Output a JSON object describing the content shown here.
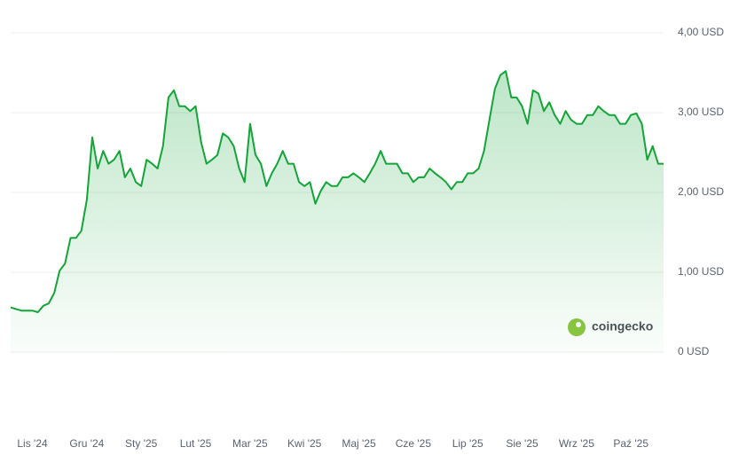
{
  "chart_data": {
    "type": "line",
    "watermark": "coingecko",
    "categories": [
      null,
      null,
      null,
      null,
      "Lis '24",
      null,
      null,
      null,
      null,
      null,
      null,
      null,
      null,
      null,
      "Gru '24",
      null,
      null,
      null,
      null,
      null,
      null,
      null,
      null,
      null,
      "Sty '25",
      null,
      null,
      null,
      null,
      null,
      null,
      null,
      null,
      null,
      "Lut '25",
      null,
      null,
      null,
      null,
      null,
      null,
      null,
      null,
      null,
      "Mar '25",
      null,
      null,
      null,
      null,
      null,
      null,
      null,
      null,
      null,
      "Kwi '25",
      null,
      null,
      null,
      null,
      null,
      null,
      null,
      null,
      null,
      "Maj '25",
      null,
      null,
      null,
      null,
      null,
      null,
      null,
      null,
      null,
      "Cze '25",
      null,
      null,
      null,
      null,
      null,
      null,
      null,
      null,
      null,
      "Lip '25",
      null,
      null,
      null,
      null,
      null,
      null,
      null,
      null,
      null,
      "Sie '25",
      null,
      null,
      null,
      null,
      null,
      null,
      null,
      null,
      null,
      "Wrz '25",
      null,
      null,
      null,
      null,
      null,
      null,
      null,
      null,
      null,
      "Paź '25",
      null,
      null,
      null,
      null,
      null,
      null
    ],
    "values": [
      0.56,
      0.54,
      0.52,
      0.52,
      0.52,
      0.5,
      0.58,
      0.61,
      0.74,
      1.02,
      1.11,
      1.43,
      1.43,
      1.52,
      1.91,
      2.69,
      2.3,
      2.52,
      2.36,
      2.41,
      2.52,
      2.19,
      2.3,
      2.13,
      2.08,
      2.41,
      2.36,
      2.3,
      2.58,
      3.19,
      3.28,
      3.08,
      3.08,
      3.02,
      3.08,
      2.63,
      2.36,
      2.41,
      2.47,
      2.74,
      2.69,
      2.58,
      2.3,
      2.13,
      2.86,
      2.47,
      2.36,
      2.08,
      2.24,
      2.36,
      2.52,
      2.36,
      2.36,
      2.13,
      2.08,
      2.13,
      1.86,
      2.02,
      2.13,
      2.08,
      2.08,
      2.19,
      2.19,
      2.24,
      2.19,
      2.13,
      2.24,
      2.36,
      2.52,
      2.36,
      2.36,
      2.36,
      2.24,
      2.24,
      2.13,
      2.19,
      2.19,
      2.3,
      2.24,
      2.19,
      2.13,
      2.04,
      2.13,
      2.13,
      2.24,
      2.24,
      2.3,
      2.52,
      2.91,
      3.3,
      3.47,
      3.52,
      3.19,
      3.19,
      3.08,
      2.86,
      3.28,
      3.24,
      3.02,
      3.13,
      2.97,
      2.86,
      3.02,
      2.91,
      2.86,
      2.86,
      2.97,
      2.97,
      3.08,
      3.02,
      2.97,
      2.97,
      2.86,
      2.86,
      2.97,
      2.99,
      2.86,
      2.41,
      2.58,
      2.36,
      2.36
    ],
    "color": "#13a538",
    "ylim": [
      0,
      4
    ],
    "yticks": [
      {
        "value": 0,
        "label": "0 USD"
      },
      {
        "value": 1,
        "label": "1,00 USD"
      },
      {
        "value": 2,
        "label": "2,00 USD"
      },
      {
        "value": 3,
        "label": "3,00 USD"
      },
      {
        "value": 4,
        "label": "4,00 USD"
      }
    ],
    "grid": true
  }
}
